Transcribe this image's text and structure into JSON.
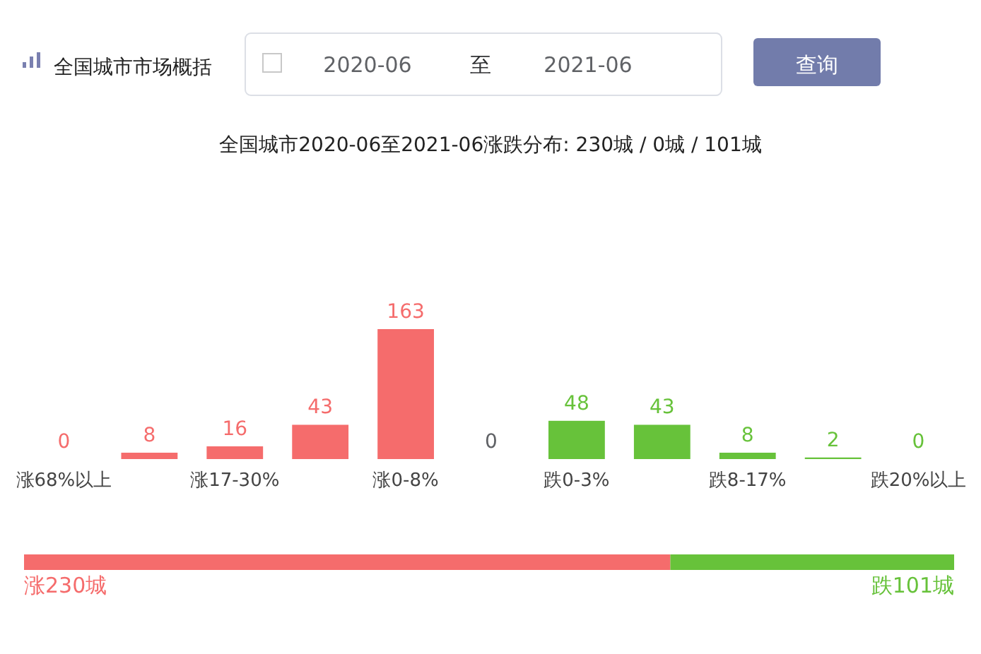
{
  "chart_data": [
    {
      "type": "bar",
      "title": "全国城市市场概括",
      "subtitle": "全国城市2020-06至2021-06涨跌分布: 230城 / 0城 / 101城",
      "annotations": [
        "2020-06",
        "至",
        "2021-06",
        "查询"
      ],
      "categories": [
        "涨68%以上",
        null,
        "涨17-30%",
        null,
        "涨0-8%",
        null,
        "跌0-3%",
        null,
        "跌8-17%",
        null,
        "跌20%以上"
      ],
      "values": [
        0,
        8,
        16,
        43,
        163,
        0,
        48,
        43,
        8,
        2,
        0
      ],
      "colors": [
        "#f56c6c",
        "#f56c6c",
        "#f56c6c",
        "#f56c6c",
        "#f56c6c",
        "#606266",
        "#67c23a",
        "#67c23a",
        "#67c23a",
        "#67c23a",
        "#67c23a"
      ],
      "data_labels": true
    },
    {
      "type": "bar",
      "orientation": "horizontal",
      "stacked": true,
      "categories": [
        null
      ],
      "series": [
        {
          "color": "#f56c6c",
          "values": [
            230
          ],
          "value_labels": [
            "涨230城"
          ]
        },
        {
          "color": "#67c23a",
          "values": [
            101
          ],
          "value_labels": [
            "跌101城"
          ]
        }
      ]
    }
  ]
}
